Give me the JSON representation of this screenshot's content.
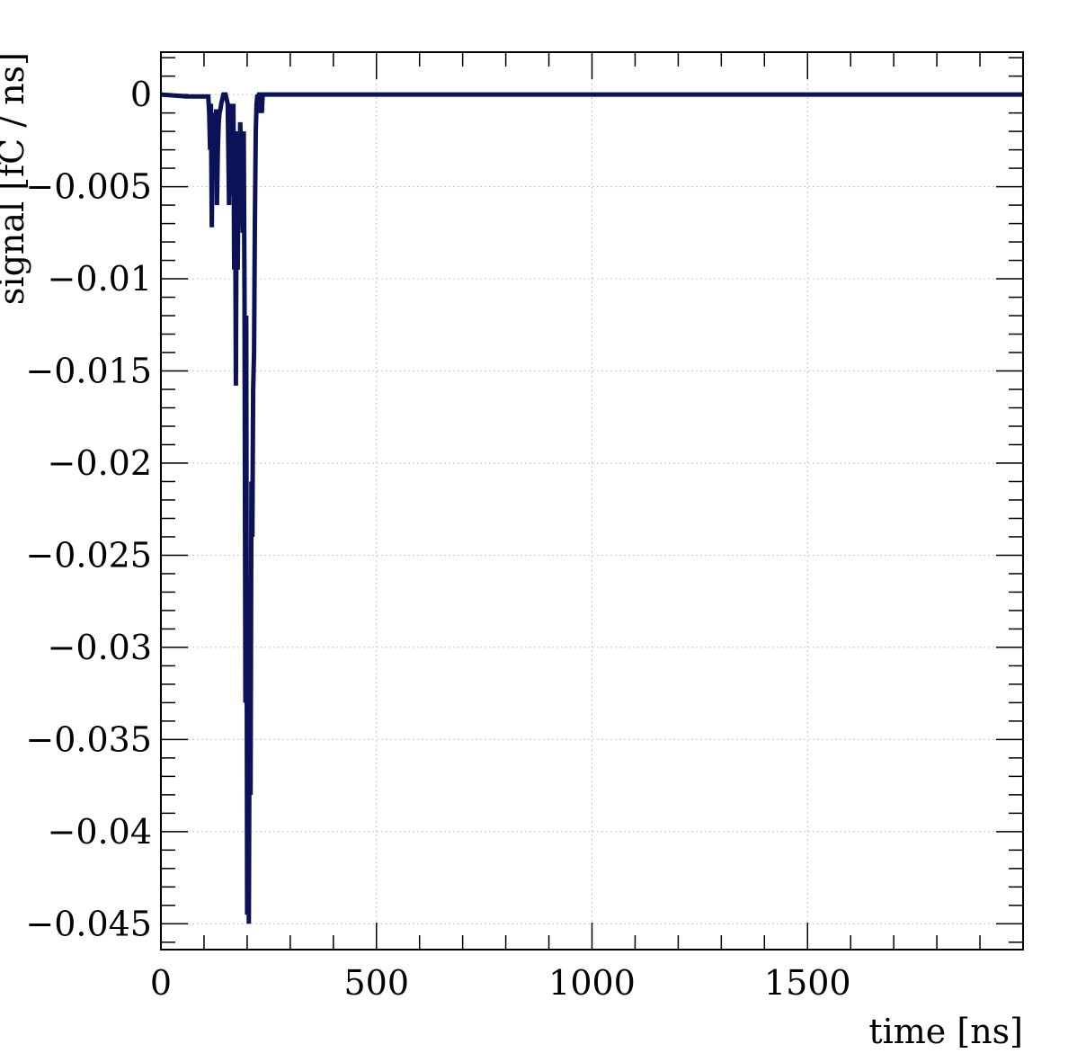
{
  "chart_data": {
    "type": "line",
    "title": "",
    "xlabel": "time [ns]",
    "ylabel": "signal [fC / ns]",
    "xlim": [
      0,
      2000
    ],
    "ylim": [
      -0.0464,
      0.0023
    ],
    "x_ticks": [
      0,
      500,
      1000,
      1500
    ],
    "x_tick_labels": [
      "0",
      "500",
      "1000",
      "1500"
    ],
    "y_ticks": [
      0,
      -0.005,
      -0.01,
      -0.015,
      -0.02,
      -0.025,
      -0.03,
      -0.035,
      -0.04,
      -0.045
    ],
    "y_tick_labels": [
      "0",
      "−0.005",
      "−0.01",
      "−0.015",
      "−0.02",
      "−0.025",
      "−0.03",
      "−0.035",
      "−0.04",
      "−0.045"
    ],
    "grid": true,
    "line_color": "#0b1257",
    "series": [
      {
        "x": [
          0,
          60,
          110,
          112,
          114,
          116,
          118,
          120,
          122,
          124,
          126,
          128,
          130,
          132,
          134,
          136,
          138,
          140,
          145,
          150,
          155,
          158,
          160,
          162,
          164,
          166,
          168,
          170,
          172,
          174,
          176,
          178,
          180,
          182,
          184,
          186,
          188,
          190,
          192,
          194,
          196,
          198,
          200,
          202,
          204,
          206,
          208,
          210,
          212,
          214,
          216,
          218,
          220,
          222,
          224,
          226,
          228,
          230,
          232,
          234,
          236,
          238,
          240,
          242,
          244,
          246,
          250,
          260,
          300,
          500,
          1000,
          1500,
          2000
        ],
        "y": [
          0,
          -0.0001,
          -0.0001,
          -0.001,
          -0.003,
          -0.0005,
          -0.0072,
          -0.0015,
          -0.001,
          -0.0015,
          -0.003,
          -0.0008,
          -0.006,
          -0.003,
          -0.0015,
          -0.001,
          -0.0008,
          -0.0005,
          0,
          0,
          -0.0005,
          -0.006,
          -0.0005,
          -0.0045,
          -0.001,
          -0.0055,
          -0.0005,
          -0.0095,
          -0.004,
          -0.0158,
          -0.002,
          -0.0095,
          -0.0045,
          -0.006,
          -0.0015,
          -0.003,
          -0.0055,
          -0.0075,
          -0.002,
          -0.011,
          -0.033,
          -0.012,
          -0.0445,
          -0.035,
          -0.045,
          -0.03,
          -0.038,
          -0.021,
          -0.024,
          -0.016,
          -0.014,
          -0.007,
          -0.002,
          -0.0005,
          0,
          -0.001,
          0,
          0,
          -0.0005,
          -0.001,
          0,
          0,
          0,
          0,
          0,
          0,
          0,
          0,
          0,
          0,
          0,
          0,
          0
        ]
      }
    ]
  }
}
